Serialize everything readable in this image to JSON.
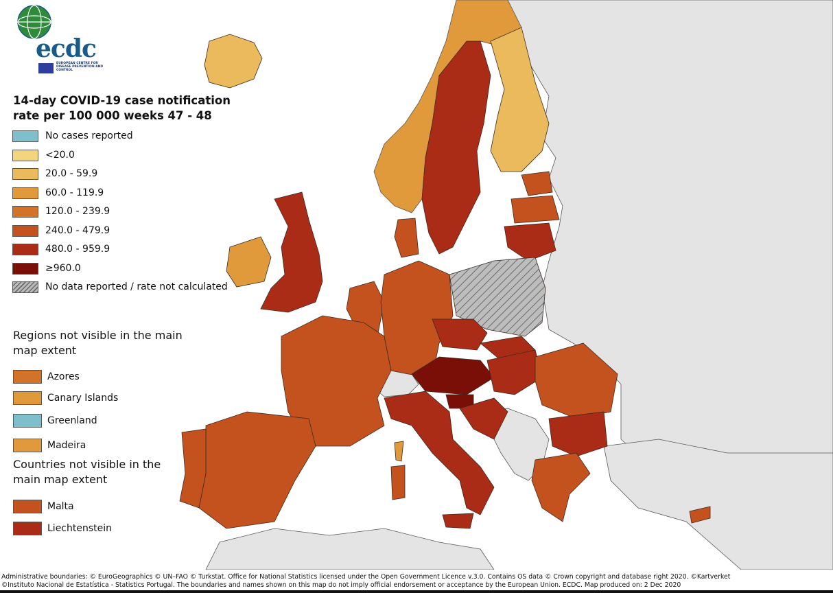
{
  "title": "14-day COVID-19 case notification rate per 100 000 weeks 47 - 48",
  "logo": {
    "name": "ecdc",
    "subtitle": "EUROPEAN CENTRE FOR DISEASE PREVENTION AND CONTROL"
  },
  "colors": {
    "sea": "#ffffff",
    "non_eu_land": "#e4e4e4",
    "border": "#333333",
    "no_cases": "#7fbfcb",
    "lt20": "#f2d57c",
    "c20_59": "#ebba5c",
    "c60_119": "#e09a3c",
    "c120_239": "#d3732a",
    "c240_479": "#c4521f",
    "c480_959": "#aa2c16",
    "ge960": "#7a0f08",
    "hatch": "#b9b9b9"
  },
  "legend": {
    "items": [
      {
        "label": "No cases reported",
        "color": "#7fbfcb"
      },
      {
        "label": "<20.0",
        "color": "#f2d57c"
      },
      {
        "label": "20.0 - 59.9",
        "color": "#ebba5c"
      },
      {
        "label": "60.0 - 119.9",
        "color": "#e09a3c"
      },
      {
        "label": "120.0 - 239.9",
        "color": "#d3732a"
      },
      {
        "label": "240.0 - 479.9",
        "color": "#c4521f"
      },
      {
        "label": "480.0 - 959.9",
        "color": "#aa2c16"
      },
      {
        "label": "≥960.0",
        "color": "#7a0f08"
      },
      {
        "label": "No data reported / rate not calculated",
        "color": "hatch"
      }
    ]
  },
  "regions_not_visible": {
    "title": "Regions not visible in the main map extent",
    "items": [
      {
        "label": "Azores",
        "color": "#d3732a"
      },
      {
        "label": "Canary Islands",
        "color": "#e09a3c"
      },
      {
        "label": "Greenland",
        "color": "#7fbfcb"
      },
      {
        "label": "Madeira",
        "color": "#e09a3c"
      }
    ]
  },
  "countries_not_visible": {
    "title": "Countries not visible in the main map extent",
    "items": [
      {
        "label": "Malta",
        "color": "#c4521f"
      },
      {
        "label": "Liechtenstein",
        "color": "#aa2c16"
      }
    ]
  },
  "footer": {
    "line1": "Administrative boundaries: © EuroGeographics © UN–FAO © Turkstat. Office for National Statistics licensed under the Open Government Licence v.3.0. Contains OS data © Crown copyright and database right 2020. ©Kartverket",
    "line2": "©Instituto Nacional de Estatística - Statistics Portugal. The boundaries and names shown on this map do not imply official endorsement or acceptance by the European Union. ECDC. Map produced on: 2 Dec 2020"
  }
}
